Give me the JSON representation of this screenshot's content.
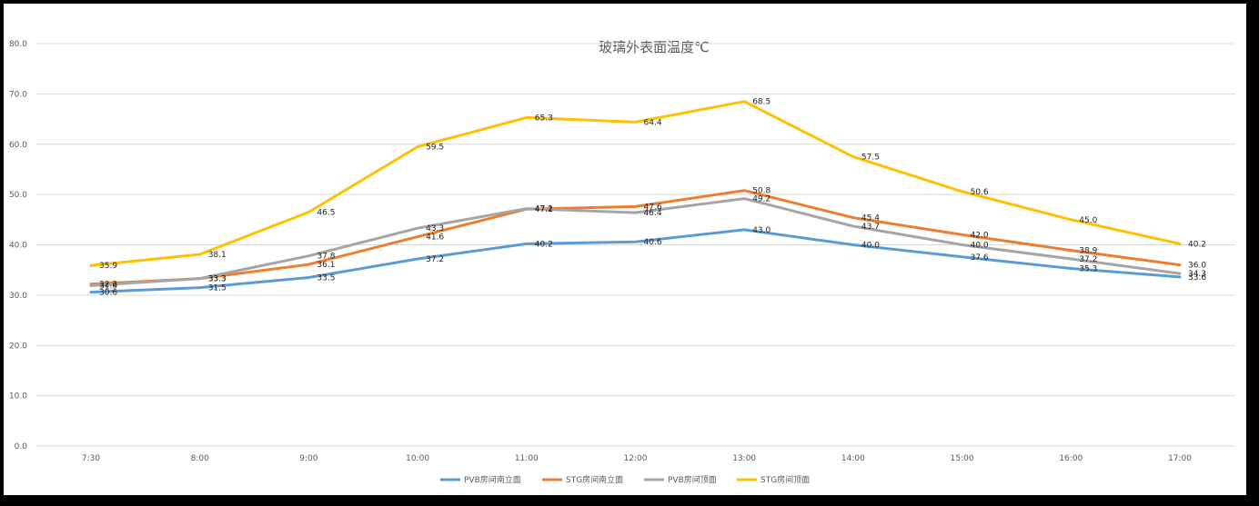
{
  "chart_data": {
    "type": "line",
    "title": "玻璃外表面温度℃",
    "categories": [
      "7:30",
      "8:00",
      "9:00",
      "10:00",
      "11:00",
      "12:00",
      "13:00",
      "14:00",
      "15:00",
      "16:00",
      "17:00"
    ],
    "y_ticks": [
      "0.0",
      "10.0",
      "20.0",
      "30.0",
      "40.0",
      "50.0",
      "60.0",
      "70.0",
      "80.0"
    ],
    "ylim": [
      0,
      80
    ],
    "grid": true,
    "legend_position": "bottom",
    "series": [
      {
        "name": "PVB房间南立面",
        "color": "#5B9BD5",
        "values": [
          30.6,
          31.5,
          33.5,
          37.2,
          40.2,
          40.6,
          43.0,
          40.0,
          37.6,
          35.3,
          33.6
        ]
      },
      {
        "name": "STG房间南立面",
        "color": "#ED7D31",
        "values": [
          32.2,
          33.3,
          36.1,
          41.6,
          47.1,
          47.6,
          50.8,
          45.4,
          42.0,
          38.9,
          36.0
        ]
      },
      {
        "name": "PVB房间顶面",
        "color": "#A5A5A5",
        "values": [
          31.9,
          33.3,
          37.8,
          43.3,
          47.2,
          46.4,
          49.2,
          43.7,
          40.0,
          37.2,
          34.3
        ]
      },
      {
        "name": "STG房间顶面",
        "color": "#FFC000",
        "values": [
          35.9,
          38.1,
          46.5,
          59.5,
          65.3,
          64.4,
          68.5,
          57.5,
          50.6,
          45.0,
          40.2
        ]
      }
    ]
  }
}
